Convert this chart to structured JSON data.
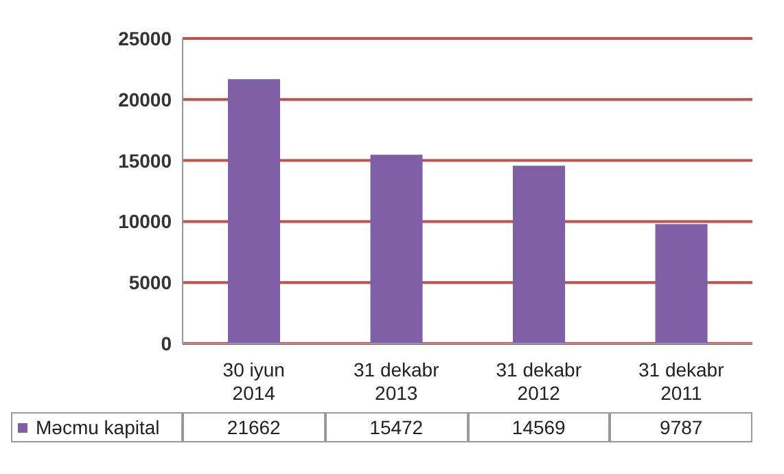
{
  "chart_data": {
    "type": "bar",
    "categories": [
      "30 iyun 2014",
      "31 dekabr 2013",
      "31 dekabr 2012",
      "31 dekabr 2011"
    ],
    "series": [
      {
        "name": "Məcmu kapital",
        "color": "#7f5fa6",
        "values": [
          21662,
          15472,
          14569,
          9787
        ]
      }
    ],
    "ylim": [
      0,
      25000
    ],
    "yticks": [
      0,
      5000,
      10000,
      15000,
      20000,
      25000
    ],
    "grid": "y",
    "legend": "bottom",
    "data_labels": true
  }
}
